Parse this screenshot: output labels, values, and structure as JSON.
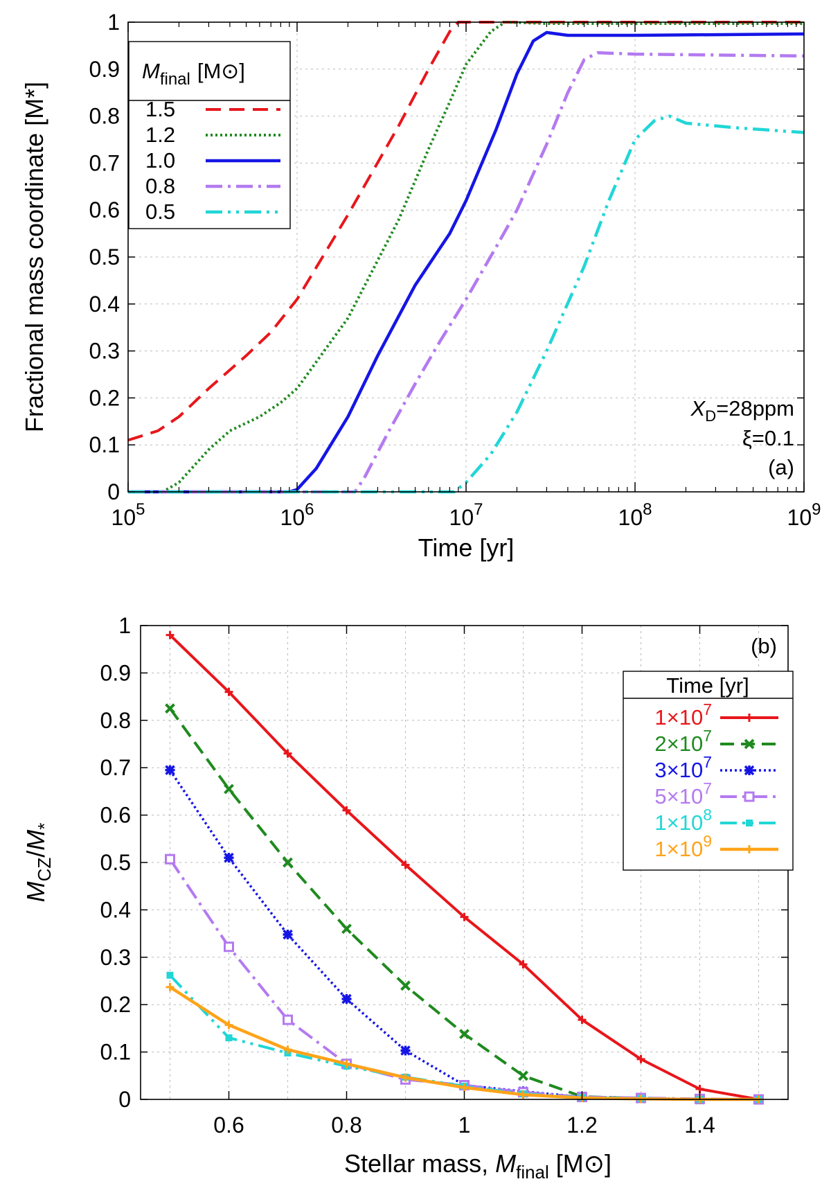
{
  "colors": {
    "red": "#e8161b",
    "green": "#1f8a1f",
    "blue": "#1515e6",
    "purple": "#b37af0",
    "cyan": "#22d6d6",
    "orange": "#ffa31a"
  },
  "chart_data": [
    {
      "id": "a",
      "type": "line",
      "panel_label": "(a)",
      "xlabel": "Time [yr]",
      "ylabel": "Fractional mass coordinate [M*]",
      "xscale": "log",
      "xlim": [
        100000,
        1000000000
      ],
      "ylim": [
        0,
        1
      ],
      "xtick_exponents": [
        "5",
        "6",
        "7",
        "8",
        "9"
      ],
      "xtick_base": "10",
      "yticks": [
        "0",
        "0.1",
        "0.2",
        "0.3",
        "0.4",
        "0.5",
        "0.6",
        "0.7",
        "0.8",
        "0.9",
        "1"
      ],
      "grid": true,
      "legend_title_symbol": "M",
      "legend_title_sub": "final",
      "legend_title_unit": "[M⊙]",
      "legend_position": "top-left",
      "annotations": {
        "xd_symbol": "X",
        "xd_sub": "D",
        "xd_value": "=28ppm",
        "xi": "ξ=0.1"
      },
      "series": [
        {
          "name": "1.5",
          "color": "red",
          "dash": "22 12",
          "width": 4,
          "points": [
            [
              100000,
              0.11
            ],
            [
              150000,
              0.13
            ],
            [
              200000,
              0.16
            ],
            [
              300000,
              0.22
            ],
            [
              500000,
              0.29
            ],
            [
              700000,
              0.34
            ],
            [
              1000000,
              0.41
            ],
            [
              2000000,
              0.59
            ],
            [
              4000000,
              0.78
            ],
            [
              6000000,
              0.9
            ],
            [
              8000000,
              0.98
            ],
            [
              9000000,
              1.0
            ],
            [
              20000000,
              1.0
            ],
            [
              1000000000,
              1.0
            ]
          ]
        },
        {
          "name": "1.2",
          "color": "green",
          "dash": "3 4",
          "width": 4,
          "points": [
            [
              100000,
              0.0
            ],
            [
              160000,
              0.0
            ],
            [
              200000,
              0.02
            ],
            [
              300000,
              0.09
            ],
            [
              400000,
              0.13
            ],
            [
              600000,
              0.16
            ],
            [
              800000,
              0.19
            ],
            [
              1000000,
              0.22
            ],
            [
              2000000,
              0.37
            ],
            [
              4000000,
              0.58
            ],
            [
              6000000,
              0.73
            ],
            [
              8000000,
              0.83
            ],
            [
              10000000,
              0.91
            ],
            [
              14000000,
              0.98
            ],
            [
              17000000,
              1.0
            ],
            [
              30000000,
              0.997
            ],
            [
              1000000000,
              0.997
            ]
          ]
        },
        {
          "name": "1.0",
          "color": "blue",
          "dash": "",
          "width": 4.5,
          "points": [
            [
              100000,
              0.0
            ],
            [
              900000,
              0.0
            ],
            [
              1000000,
              0.005
            ],
            [
              1300000,
              0.05
            ],
            [
              2000000,
              0.16
            ],
            [
              3000000,
              0.29
            ],
            [
              5000000,
              0.44
            ],
            [
              8000000,
              0.55
            ],
            [
              10000000,
              0.62
            ],
            [
              15000000,
              0.77
            ],
            [
              20000000,
              0.89
            ],
            [
              25000000,
              0.96
            ],
            [
              30000000,
              0.978
            ],
            [
              40000000,
              0.972
            ],
            [
              100000000,
              0.972
            ],
            [
              1000000000,
              0.975
            ]
          ]
        },
        {
          "name": "0.8",
          "color": "purple",
          "dash": "24 8 4 8",
          "width": 4.5,
          "points": [
            [
              100000,
              0.0
            ],
            [
              2200000,
              0.0
            ],
            [
              2500000,
              0.03
            ],
            [
              3500000,
              0.13
            ],
            [
              5000000,
              0.23
            ],
            [
              7000000,
              0.32
            ],
            [
              10000000,
              0.41
            ],
            [
              15000000,
              0.52
            ],
            [
              20000000,
              0.6
            ],
            [
              30000000,
              0.74
            ],
            [
              40000000,
              0.85
            ],
            [
              50000000,
              0.92
            ],
            [
              60000000,
              0.935
            ],
            [
              100000000,
              0.932
            ],
            [
              1000000000,
              0.928
            ]
          ]
        },
        {
          "name": "0.5",
          "color": "cyan",
          "dash": "24 8 4 8 4 8",
          "width": 4.5,
          "points": [
            [
              100000,
              0.0
            ],
            [
              8500000,
              0.0
            ],
            [
              10000000,
              0.02
            ],
            [
              14000000,
              0.08
            ],
            [
              20000000,
              0.17
            ],
            [
              30000000,
              0.3
            ],
            [
              50000000,
              0.48
            ],
            [
              70000000,
              0.62
            ],
            [
              100000000,
              0.75
            ],
            [
              130000000,
              0.79
            ],
            [
              160000000,
              0.8
            ],
            [
              200000000,
              0.785
            ],
            [
              400000000,
              0.775
            ],
            [
              1000000000,
              0.765
            ]
          ]
        }
      ]
    },
    {
      "id": "b",
      "type": "line",
      "panel_label": "(b)",
      "xlabel_prefix": "Stellar mass, ",
      "xlabel_symbol": "M",
      "xlabel_sub": "final",
      "xlabel_unit": " [M⊙]",
      "ylabel_symbol_1": "M",
      "ylabel_sub_1": "CZ",
      "ylabel_slash": "/",
      "ylabel_symbol_2": "M",
      "ylabel_sub_2": "*",
      "xlim": [
        0.45,
        1.55
      ],
      "ylim": [
        0,
        1
      ],
      "xticks": [
        "0.6",
        "0.8",
        "1",
        "1.2",
        "1.4"
      ],
      "yticks": [
        "0",
        "0.1",
        "0.2",
        "0.3",
        "0.4",
        "0.5",
        "0.6",
        "0.7",
        "0.8",
        "0.9",
        "1"
      ],
      "grid": true,
      "legend_title": "Time [yr]",
      "legend_position": "top-right",
      "x": [
        0.5,
        0.6,
        0.7,
        0.8,
        0.9,
        1.0,
        1.1,
        1.2,
        1.3,
        1.4,
        1.5
      ],
      "series": [
        {
          "name_mantissa": "1×10",
          "name_exp": "7",
          "color": "red",
          "dash": "",
          "width": 4,
          "marker": "plus",
          "values": [
            0.98,
            0.86,
            0.73,
            0.61,
            0.495,
            0.385,
            0.285,
            0.168,
            0.085,
            0.022,
            0.0
          ]
        },
        {
          "name_mantissa": "2×10",
          "name_exp": "7",
          "color": "green",
          "dash": "20 10",
          "width": 4,
          "marker": "x",
          "values": [
            0.825,
            0.655,
            0.5,
            0.36,
            0.24,
            0.138,
            0.05,
            0.006,
            0.002,
            0.0,
            0.0
          ]
        },
        {
          "name_mantissa": "3×10",
          "name_exp": "7",
          "color": "blue",
          "dash": "3 4",
          "width": 3.5,
          "marker": "star",
          "values": [
            0.695,
            0.51,
            0.348,
            0.212,
            0.103,
            0.03,
            0.017,
            0.005,
            0.003,
            0.0,
            0.0
          ]
        },
        {
          "name_mantissa": "5×10",
          "name_exp": "7",
          "color": "purple",
          "dash": "24 8 4 8",
          "width": 4,
          "marker": "square",
          "values": [
            0.507,
            0.322,
            0.168,
            0.075,
            0.042,
            0.03,
            0.015,
            0.005,
            0.003,
            0.001,
            0.0
          ]
        },
        {
          "name_mantissa": "1×10",
          "name_exp": "8",
          "color": "cyan",
          "dash": "24 8 4 8 4 8",
          "width": 4,
          "marker": "filled-square",
          "values": [
            0.262,
            0.13,
            0.098,
            0.07,
            0.047,
            0.028,
            0.012,
            0.004,
            0.002,
            0.0,
            0.0
          ]
        },
        {
          "name_mantissa": "1×10",
          "name_exp": "9",
          "color": "orange",
          "dash": "",
          "width": 4.5,
          "marker": "plus",
          "values": [
            0.237,
            0.157,
            0.105,
            0.075,
            0.046,
            0.025,
            0.01,
            0.003,
            0.001,
            0.0,
            0.0
          ]
        }
      ]
    }
  ]
}
